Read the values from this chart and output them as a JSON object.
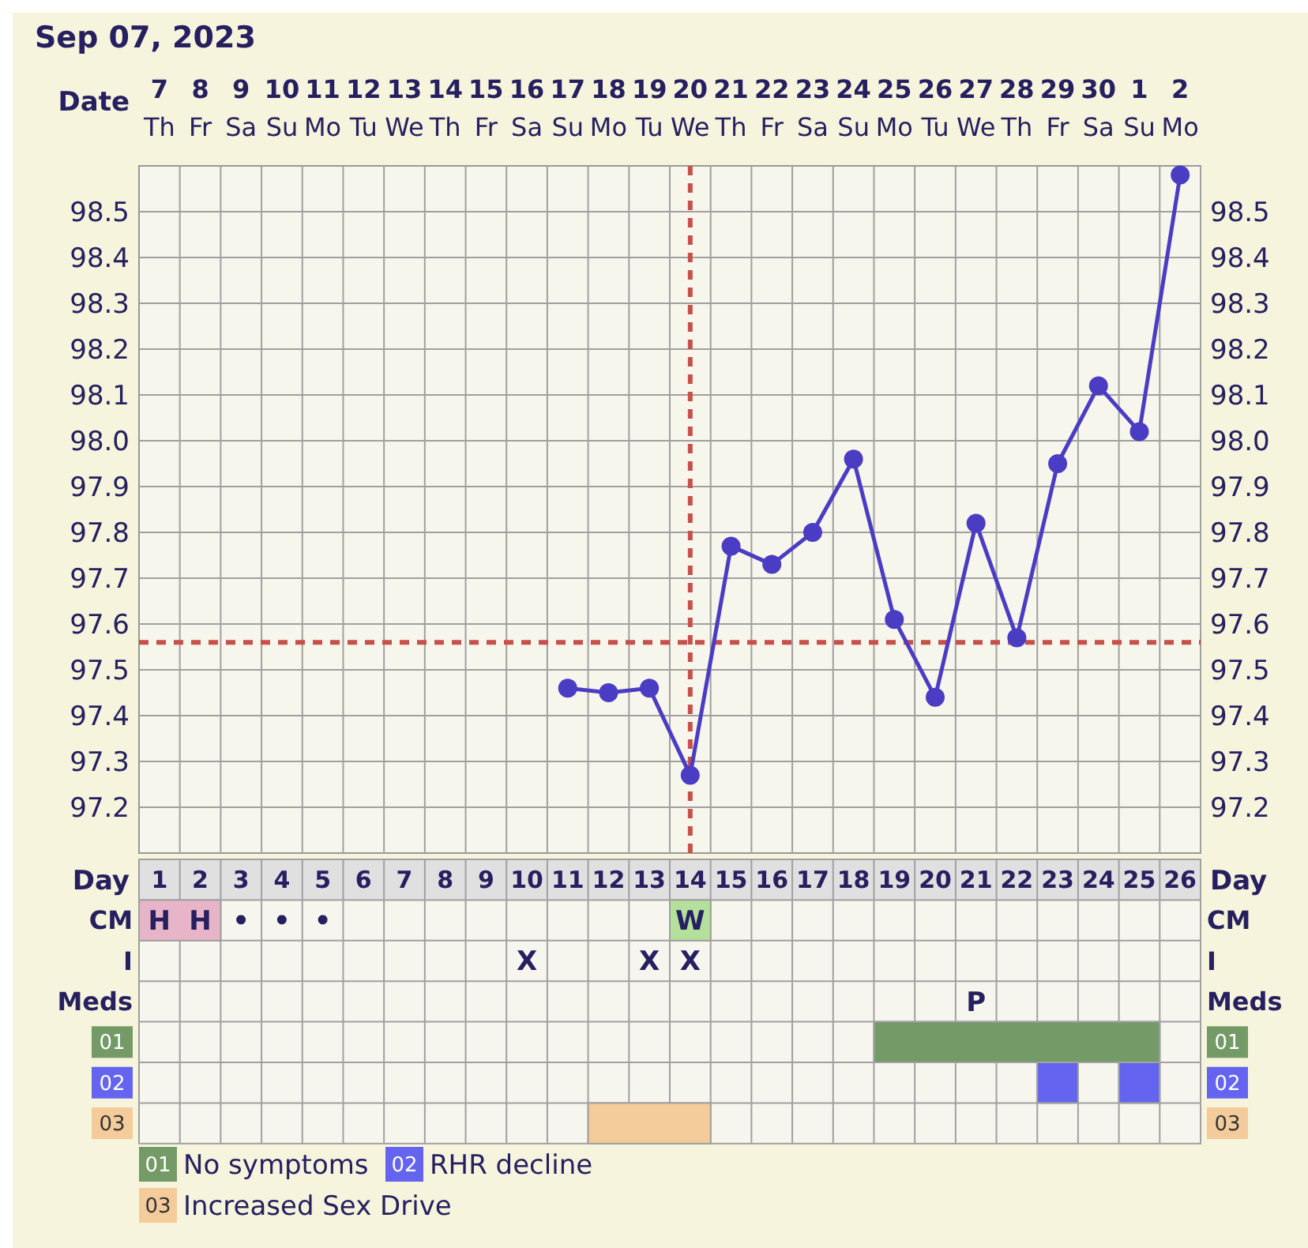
{
  "chart_data": [
    {
      "type": "line",
      "title": "Sep 07, 2023",
      "xlabel": "Date",
      "categories": [
        "7 Th",
        "8 Fr",
        "9 Sa",
        "10 Su",
        "11 Mo",
        "12 Tu",
        "13 We",
        "14 Th",
        "15 Fr",
        "16 Sa",
        "17 Su",
        "18 Mo",
        "19 Tu",
        "20 We",
        "21 Th",
        "22 Fr",
        "23 Sa",
        "24 Su",
        "25 Mo",
        "26 Tu",
        "27 We",
        "28 Th",
        "29 Fr",
        "30 Sa",
        "1 Su",
        "2 Mo"
      ],
      "series": [
        {
          "color": "#4b3cc4",
          "values": [
            null,
            null,
            null,
            null,
            null,
            null,
            null,
            null,
            null,
            null,
            97.46,
            97.45,
            97.46,
            97.27,
            97.77,
            97.73,
            97.8,
            97.96,
            97.61,
            97.44,
            97.82,
            97.57,
            97.95,
            98.12,
            98.02,
            98.58
          ]
        }
      ],
      "ylim": [
        97.1,
        98.6
      ],
      "yticks": [
        97.2,
        97.3,
        97.4,
        97.5,
        97.6,
        97.7,
        97.8,
        97.9,
        {
          "value": 98,
          "label": "98.0"
        },
        98.1,
        98.2,
        98.3,
        98.4,
        98.5
      ],
      "y2lim": [
        97.1,
        98.6
      ],
      "y2ticks": [
        97.2,
        97.3,
        97.4,
        97.5,
        97.6,
        97.7,
        97.8,
        97.9,
        {
          "value": 98,
          "label": "98.0"
        },
        98.1,
        98.2,
        98.3,
        98.4,
        98.5
      ],
      "grid": true,
      "marker": "circle",
      "line_style": "solid",
      "ref_lines": [
        {
          "axis": "x",
          "value": "20 We",
          "color": "#c8504a",
          "line_style": "dashed"
        },
        {
          "axis": "y",
          "value": 97.56,
          "color": "#c8504a",
          "line_style": "dashed"
        }
      ]
    },
    {
      "type": "bar",
      "orientation": "horizontal",
      "xlabel": "Day",
      "categories": [
        "CM",
        "I",
        "Meds",
        "01",
        "02",
        "03"
      ],
      "xlim": [
        0.5,
        26.5
      ],
      "xticks": [
        1,
        2,
        3,
        4,
        5,
        6,
        7,
        8,
        9,
        10,
        11,
        12,
        13,
        14,
        15,
        16,
        17,
        18,
        19,
        20,
        21,
        22,
        23,
        24,
        25,
        26
      ],
      "grid": true,
      "series": [
        {
          "values": [
            2,
            null,
            null,
            7,
            1,
            3
          ],
          "base": [
            0.5,
            null,
            null,
            18.5,
            22.5,
            11.5
          ],
          "colors": [
            "#e8b4c8",
            null,
            null,
            "#739a67",
            "#6464f0",
            "#f4cb9a"
          ]
        },
        {
          "values": [
            1,
            null,
            null,
            null,
            1,
            null
          ],
          "base": [
            13.5,
            null,
            null,
            null,
            24.5,
            null
          ],
          "colors": [
            "#b4e09c",
            null,
            null,
            null,
            "#6464f0",
            null
          ]
        }
      ],
      "annotations": [
        {
          "text": "H",
          "x": 1,
          "y": "CM"
        },
        {
          "text": "H",
          "x": 2,
          "y": "CM"
        },
        {
          "text": "W",
          "x": 14,
          "y": "CM"
        },
        "•",
        "•",
        "•",
        "X",
        "X",
        "X",
        "P",
        "No symptoms",
        "RHR decline",
        "Increased Sex Drive"
      ]
    }
  ]
}
